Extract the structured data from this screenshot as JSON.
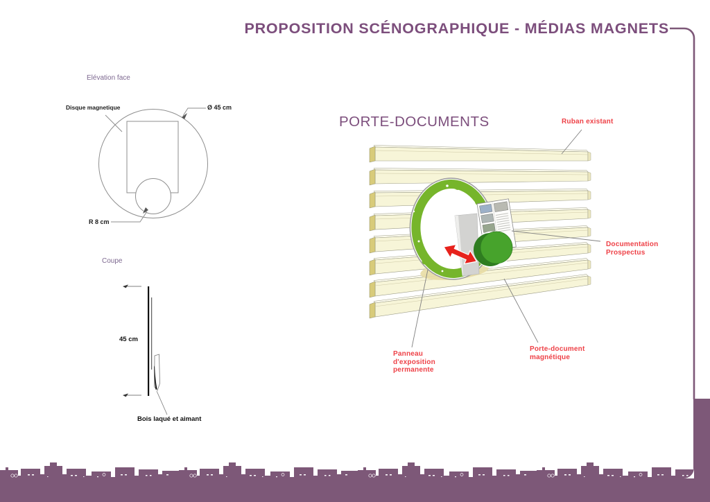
{
  "title": "PROPOSITION SCÉNOGRAPHIQUE - MÉDIAS MAGNETS",
  "colors": {
    "accent_purple": "#7c4e7c",
    "band_purple": "#7d5878",
    "label_red": "#ee4147",
    "ring_green": "#76b52b",
    "button_green": "#47a32c",
    "slat_cream": "#f7f5d8",
    "arrow_red": "#e7221c"
  },
  "elevation": {
    "title": "Elévation face",
    "labels": {
      "disque": "Disque magnetique",
      "diameter": "Ø 45 cm",
      "radius": "R 8 cm"
    }
  },
  "coupe": {
    "title": "Coupe",
    "height_label": "45 cm",
    "material_label": "Bois laqué et aimant"
  },
  "illustration": {
    "heading": "PORTE-DOCUMENTS",
    "annotations": {
      "ruban": "Ruban existant",
      "documentation": "Documentation\nProspectus",
      "panneau": "Panneau\nd'exposition\npermanente",
      "porte_document": "Porte-document\nmagnétique"
    }
  }
}
